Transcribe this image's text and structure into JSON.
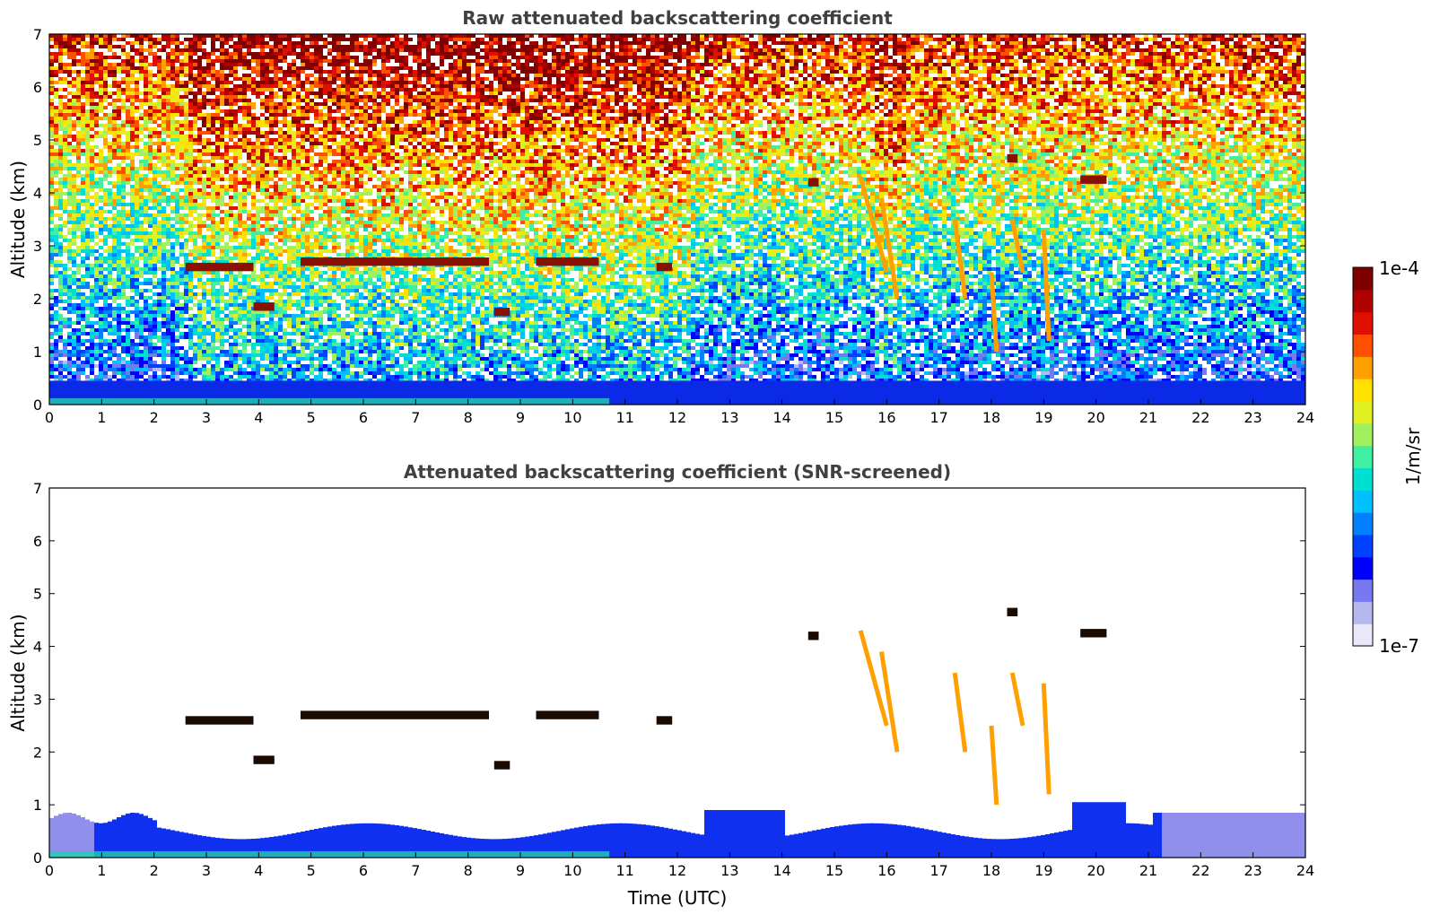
{
  "chart_data": [
    {
      "type": "heatmap",
      "title": "Raw attenuated backscattering coefficient",
      "xlabel": "",
      "ylabel": "Altitude (km)",
      "xlim": [
        0,
        24
      ],
      "ylim": [
        0,
        7
      ],
      "xticks": [
        "0",
        "1",
        "2",
        "3",
        "4",
        "5",
        "6",
        "7",
        "8",
        "9",
        "10",
        "11",
        "12",
        "13",
        "14",
        "15",
        "16",
        "17",
        "18",
        "19",
        "20",
        "21",
        "22",
        "23",
        "24"
      ],
      "yticks": [
        "0",
        "1",
        "2",
        "3",
        "4",
        "5",
        "6",
        "7"
      ],
      "screened": false
    },
    {
      "type": "heatmap",
      "title": "Attenuated backscattering coefficient (SNR-screened)",
      "xlabel": "Time (UTC)",
      "ylabel": "Altitude (km)",
      "xlim": [
        0,
        24
      ],
      "ylim": [
        0,
        7
      ],
      "xticks": [
        "0",
        "1",
        "2",
        "3",
        "4",
        "5",
        "6",
        "7",
        "8",
        "9",
        "10",
        "11",
        "12",
        "13",
        "14",
        "15",
        "16",
        "17",
        "18",
        "19",
        "20",
        "21",
        "22",
        "23",
        "24"
      ],
      "yticks": [
        "0",
        "1",
        "2",
        "3",
        "4",
        "5",
        "6",
        "7"
      ],
      "screened": true
    }
  ],
  "colorbar": {
    "label": "1/m/sr",
    "max_label": "1e-4",
    "min_label": "1e-7",
    "colors": [
      "#e8e8f8",
      "#b8b8f0",
      "#7878f0",
      "#0000ff",
      "#0040ff",
      "#0080ff",
      "#00c0ff",
      "#00e0d0",
      "#40f0a0",
      "#a0f060",
      "#e0f020",
      "#ffe000",
      "#ffa000",
      "#ff5000",
      "#e01000",
      "#b00000",
      "#800000"
    ]
  },
  "features": {
    "cloud_layers": [
      {
        "t0": 2.6,
        "t1": 3.9,
        "alt": 2.6
      },
      {
        "t0": 4.8,
        "t1": 8.4,
        "alt": 2.7
      },
      {
        "t0": 9.3,
        "t1": 10.5,
        "alt": 2.7
      },
      {
        "t0": 11.6,
        "t1": 11.9,
        "alt": 2.6
      },
      {
        "t0": 3.9,
        "t1": 4.3,
        "alt": 1.85
      },
      {
        "t0": 8.5,
        "t1": 8.8,
        "alt": 1.75
      },
      {
        "t0": 19.7,
        "t1": 20.2,
        "alt": 4.25
      },
      {
        "t0": 18.3,
        "t1": 18.5,
        "alt": 4.65
      },
      {
        "t0": 14.5,
        "t1": 14.7,
        "alt": 4.2
      }
    ]
  }
}
